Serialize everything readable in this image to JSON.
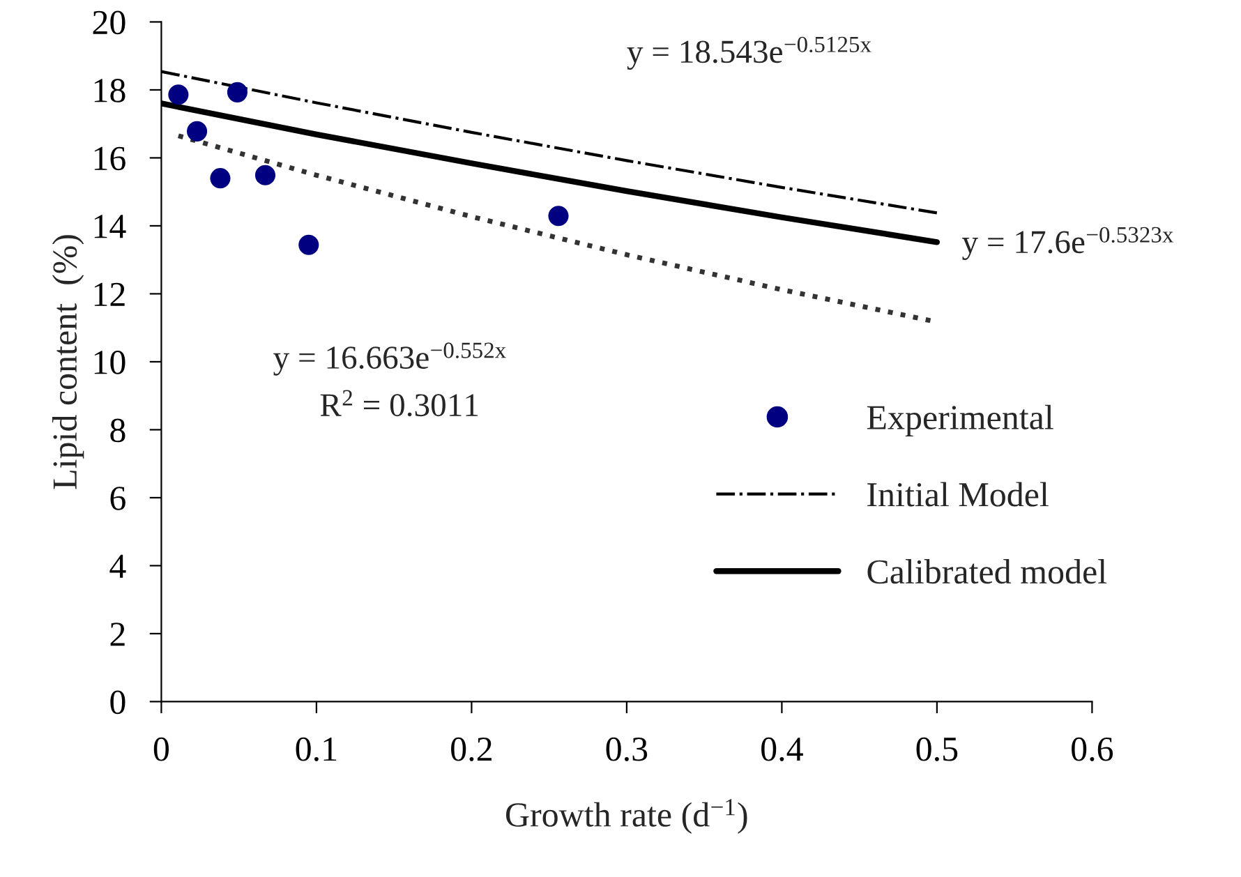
{
  "chart_data": {
    "type": "scatter",
    "xlabel": "Growth rate (d$^{−1}$)",
    "ylabel": "Lipid content  (%)",
    "xlim": [
      0,
      0.6
    ],
    "xticks": [
      0,
      0.1,
      0.2,
      0.3,
      0.4,
      0.5,
      0.6
    ],
    "ylim": [
      0,
      20
    ],
    "yticks": [
      0,
      2,
      4,
      6,
      8,
      10,
      12,
      14,
      16,
      18,
      20
    ],
    "grid": false,
    "legend": "right",
    "series": [
      {
        "name": "Experimental",
        "color": "#000080",
        "marker": "circle",
        "x": [
          0.011,
          0.023,
          0.049,
          0.038,
          0.067,
          0.095,
          0.256
        ],
        "values": [
          17.86,
          16.78,
          17.93,
          15.4,
          15.49,
          13.44,
          14.29
        ]
      },
      {
        "name": "Initial Model",
        "type": "line",
        "color": "#000000",
        "line_style": "dashdot",
        "x": [
          0,
          0.1,
          0.2,
          0.3,
          0.4,
          0.5
        ],
        "values": [
          18.54,
          17.62,
          16.75,
          15.92,
          15.13,
          14.38
        ]
      },
      {
        "name": "Calibrated model",
        "type": "line",
        "color": "#000000",
        "line_style": "solid",
        "x": [
          0,
          0.1,
          0.2,
          0.3,
          0.4,
          0.5
        ],
        "values": [
          17.6,
          16.69,
          15.84,
          15.02,
          14.25,
          13.52
        ]
      },
      {
        "type": "line",
        "color": "#333333",
        "line_style": "dotted",
        "x": [
          0.011,
          0.1,
          0.2,
          0.3,
          0.4,
          0.5
        ],
        "values": [
          16.65,
          15.49,
          14.27,
          13.15,
          12.12,
          11.17
        ]
      }
    ],
    "annotations": [
      "y = 18.543e$^{−0.5125x}$",
      "y = 17.6e$^{−0.5323x}$",
      "y = 16.663e$^{−0.552x}$",
      "R$^{2}$ = 0.3011"
    ]
  }
}
